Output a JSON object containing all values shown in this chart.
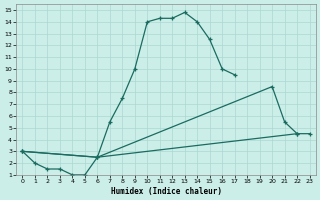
{
  "xlabel": "Humidex (Indice chaleur)",
  "bg_color": "#cceee8",
  "grid_color": "#aad8d0",
  "line_color": "#1a6b60",
  "xlim": [
    -0.5,
    23.5
  ],
  "ylim": [
    1,
    15.5
  ],
  "xticks": [
    0,
    1,
    2,
    3,
    4,
    5,
    6,
    7,
    8,
    9,
    10,
    11,
    12,
    13,
    14,
    15,
    16,
    17,
    18,
    19,
    20,
    21,
    22,
    23
  ],
  "yticks": [
    1,
    2,
    3,
    4,
    5,
    6,
    7,
    8,
    9,
    10,
    11,
    12,
    13,
    14,
    15
  ],
  "line1": {
    "x": [
      0,
      1,
      2,
      3,
      4,
      5,
      6,
      7,
      8,
      9,
      10,
      11,
      12,
      13,
      14,
      15,
      16,
      17
    ],
    "y": [
      3,
      2,
      1.5,
      1.5,
      1,
      1,
      2.5,
      5.5,
      7.5,
      10,
      14,
      14.3,
      14.3,
      14.8,
      14,
      12.5,
      10,
      9.5
    ]
  },
  "line2": {
    "x": [
      0,
      6,
      20,
      21,
      22
    ],
    "y": [
      3,
      2.5,
      8.5,
      5.5,
      4.5
    ]
  },
  "line3": {
    "x": [
      0,
      6,
      22,
      23
    ],
    "y": [
      3,
      2.5,
      4.5,
      4.5
    ]
  }
}
